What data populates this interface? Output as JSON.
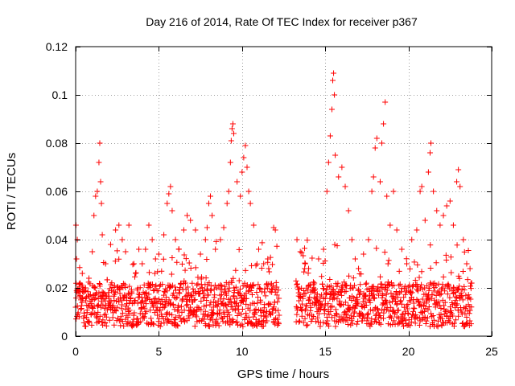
{
  "chart_data": {
    "type": "scatter",
    "title": "Day 216 of 2014, Rate Of TEC Index for receiver p367",
    "xlabel": "GPS time / hours",
    "ylabel": "ROTI / TECUs",
    "xlim": [
      0,
      25
    ],
    "ylim": [
      0,
      0.12
    ],
    "xticks": [
      0,
      5,
      10,
      15,
      20,
      25
    ],
    "xtick_labels": [
      "0",
      "5",
      "10",
      "15",
      "20",
      "25"
    ],
    "yticks": [
      0,
      0.02,
      0.04,
      0.06,
      0.08,
      0.1,
      0.12
    ],
    "ytick_labels": [
      "0",
      "0.02",
      "0.04",
      "0.06",
      "0.08",
      "0.1",
      "0.12"
    ],
    "grid": true,
    "marker": "+",
    "color": "#ff0000",
    "data_gap_hours": [
      12.2,
      13.2
    ],
    "series": [
      {
        "name": "ROTI",
        "points": [
          [
            0.0,
            0.012
          ],
          [
            0.02,
            0.046
          ],
          [
            0.05,
            0.032
          ],
          [
            0.1,
            0.04
          ],
          [
            0.15,
            0.018
          ],
          [
            0.25,
            0.022
          ],
          [
            0.4,
            0.026
          ],
          [
            0.6,
            0.02
          ],
          [
            0.8,
            0.024
          ],
          [
            1.0,
            0.035
          ],
          [
            1.1,
            0.05
          ],
          [
            1.2,
            0.058
          ],
          [
            1.3,
            0.06
          ],
          [
            1.4,
            0.072
          ],
          [
            1.45,
            0.08
          ],
          [
            1.5,
            0.064
          ],
          [
            1.55,
            0.055
          ],
          [
            1.6,
            0.042
          ],
          [
            1.8,
            0.03
          ],
          [
            2.1,
            0.038
          ],
          [
            2.4,
            0.044
          ],
          [
            2.6,
            0.046
          ],
          [
            2.8,
            0.04
          ],
          [
            3.0,
            0.035
          ],
          [
            3.2,
            0.046
          ],
          [
            3.5,
            0.03
          ],
          [
            3.8,
            0.036
          ],
          [
            4.0,
            0.03
          ],
          [
            4.2,
            0.036
          ],
          [
            4.4,
            0.046
          ],
          [
            4.6,
            0.04
          ],
          [
            4.8,
            0.032
          ],
          [
            5.0,
            0.034
          ],
          [
            5.3,
            0.042
          ],
          [
            5.5,
            0.055
          ],
          [
            5.6,
            0.059
          ],
          [
            5.7,
            0.062
          ],
          [
            5.8,
            0.052
          ],
          [
            6.0,
            0.04
          ],
          [
            6.2,
            0.036
          ],
          [
            6.5,
            0.044
          ],
          [
            6.7,
            0.05
          ],
          [
            6.9,
            0.048
          ],
          [
            7.2,
            0.044
          ],
          [
            7.5,
            0.034
          ],
          [
            7.8,
            0.04
          ],
          [
            7.9,
            0.045
          ],
          [
            8.0,
            0.055
          ],
          [
            8.1,
            0.058
          ],
          [
            8.2,
            0.05
          ],
          [
            8.4,
            0.036
          ],
          [
            8.7,
            0.04
          ],
          [
            8.9,
            0.045
          ],
          [
            9.1,
            0.055
          ],
          [
            9.2,
            0.06
          ],
          [
            9.3,
            0.072
          ],
          [
            9.35,
            0.081
          ],
          [
            9.4,
            0.086
          ],
          [
            9.45,
            0.088
          ],
          [
            9.5,
            0.084
          ],
          [
            9.7,
            0.064
          ],
          [
            9.9,
            0.058
          ],
          [
            10.0,
            0.068
          ],
          [
            10.1,
            0.074
          ],
          [
            10.2,
            0.079
          ],
          [
            10.3,
            0.07
          ],
          [
            10.4,
            0.06
          ],
          [
            10.5,
            0.055
          ],
          [
            10.7,
            0.046
          ],
          [
            11.0,
            0.036
          ],
          [
            11.3,
            0.03
          ],
          [
            11.6,
            0.028
          ],
          [
            11.9,
            0.045
          ],
          [
            12.0,
            0.044
          ],
          [
            13.3,
            0.04
          ],
          [
            13.5,
            0.035
          ],
          [
            13.8,
            0.03
          ],
          [
            14.0,
            0.028
          ],
          [
            14.3,
            0.02
          ],
          [
            14.6,
            0.032
          ],
          [
            14.9,
            0.036
          ],
          [
            15.1,
            0.06
          ],
          [
            15.2,
            0.072
          ],
          [
            15.3,
            0.083
          ],
          [
            15.4,
            0.094
          ],
          [
            15.45,
            0.106
          ],
          [
            15.5,
            0.109
          ],
          [
            15.55,
            0.1
          ],
          [
            15.6,
            0.075
          ],
          [
            15.8,
            0.066
          ],
          [
            16.0,
            0.07
          ],
          [
            16.2,
            0.062
          ],
          [
            16.4,
            0.052
          ],
          [
            16.6,
            0.04
          ],
          [
            16.8,
            0.032
          ],
          [
            17.0,
            0.028
          ],
          [
            17.3,
            0.034
          ],
          [
            17.6,
            0.04
          ],
          [
            17.8,
            0.06
          ],
          [
            17.9,
            0.066
          ],
          [
            18.0,
            0.078
          ],
          [
            18.1,
            0.082
          ],
          [
            18.3,
            0.064
          ],
          [
            18.4,
            0.08
          ],
          [
            18.5,
            0.088
          ],
          [
            18.6,
            0.097
          ],
          [
            18.7,
            0.058
          ],
          [
            18.9,
            0.046
          ],
          [
            19.1,
            0.06
          ],
          [
            19.3,
            0.044
          ],
          [
            19.6,
            0.036
          ],
          [
            19.9,
            0.03
          ],
          [
            20.2,
            0.04
          ],
          [
            20.5,
            0.044
          ],
          [
            20.7,
            0.06
          ],
          [
            20.8,
            0.062
          ],
          [
            21.0,
            0.048
          ],
          [
            21.2,
            0.068
          ],
          [
            21.3,
            0.076
          ],
          [
            21.35,
            0.08
          ],
          [
            21.5,
            0.06
          ],
          [
            21.7,
            0.052
          ],
          [
            21.9,
            0.046
          ],
          [
            22.1,
            0.05
          ],
          [
            22.3,
            0.054
          ],
          [
            22.5,
            0.056
          ],
          [
            22.7,
            0.046
          ],
          [
            22.9,
            0.064
          ],
          [
            23.0,
            0.069
          ],
          [
            23.1,
            0.062
          ],
          [
            23.3,
            0.04
          ],
          [
            23.5,
            0.03
          ],
          [
            23.7,
            0.028
          ],
          [
            23.8,
            0.022
          ]
        ]
      }
    ]
  }
}
